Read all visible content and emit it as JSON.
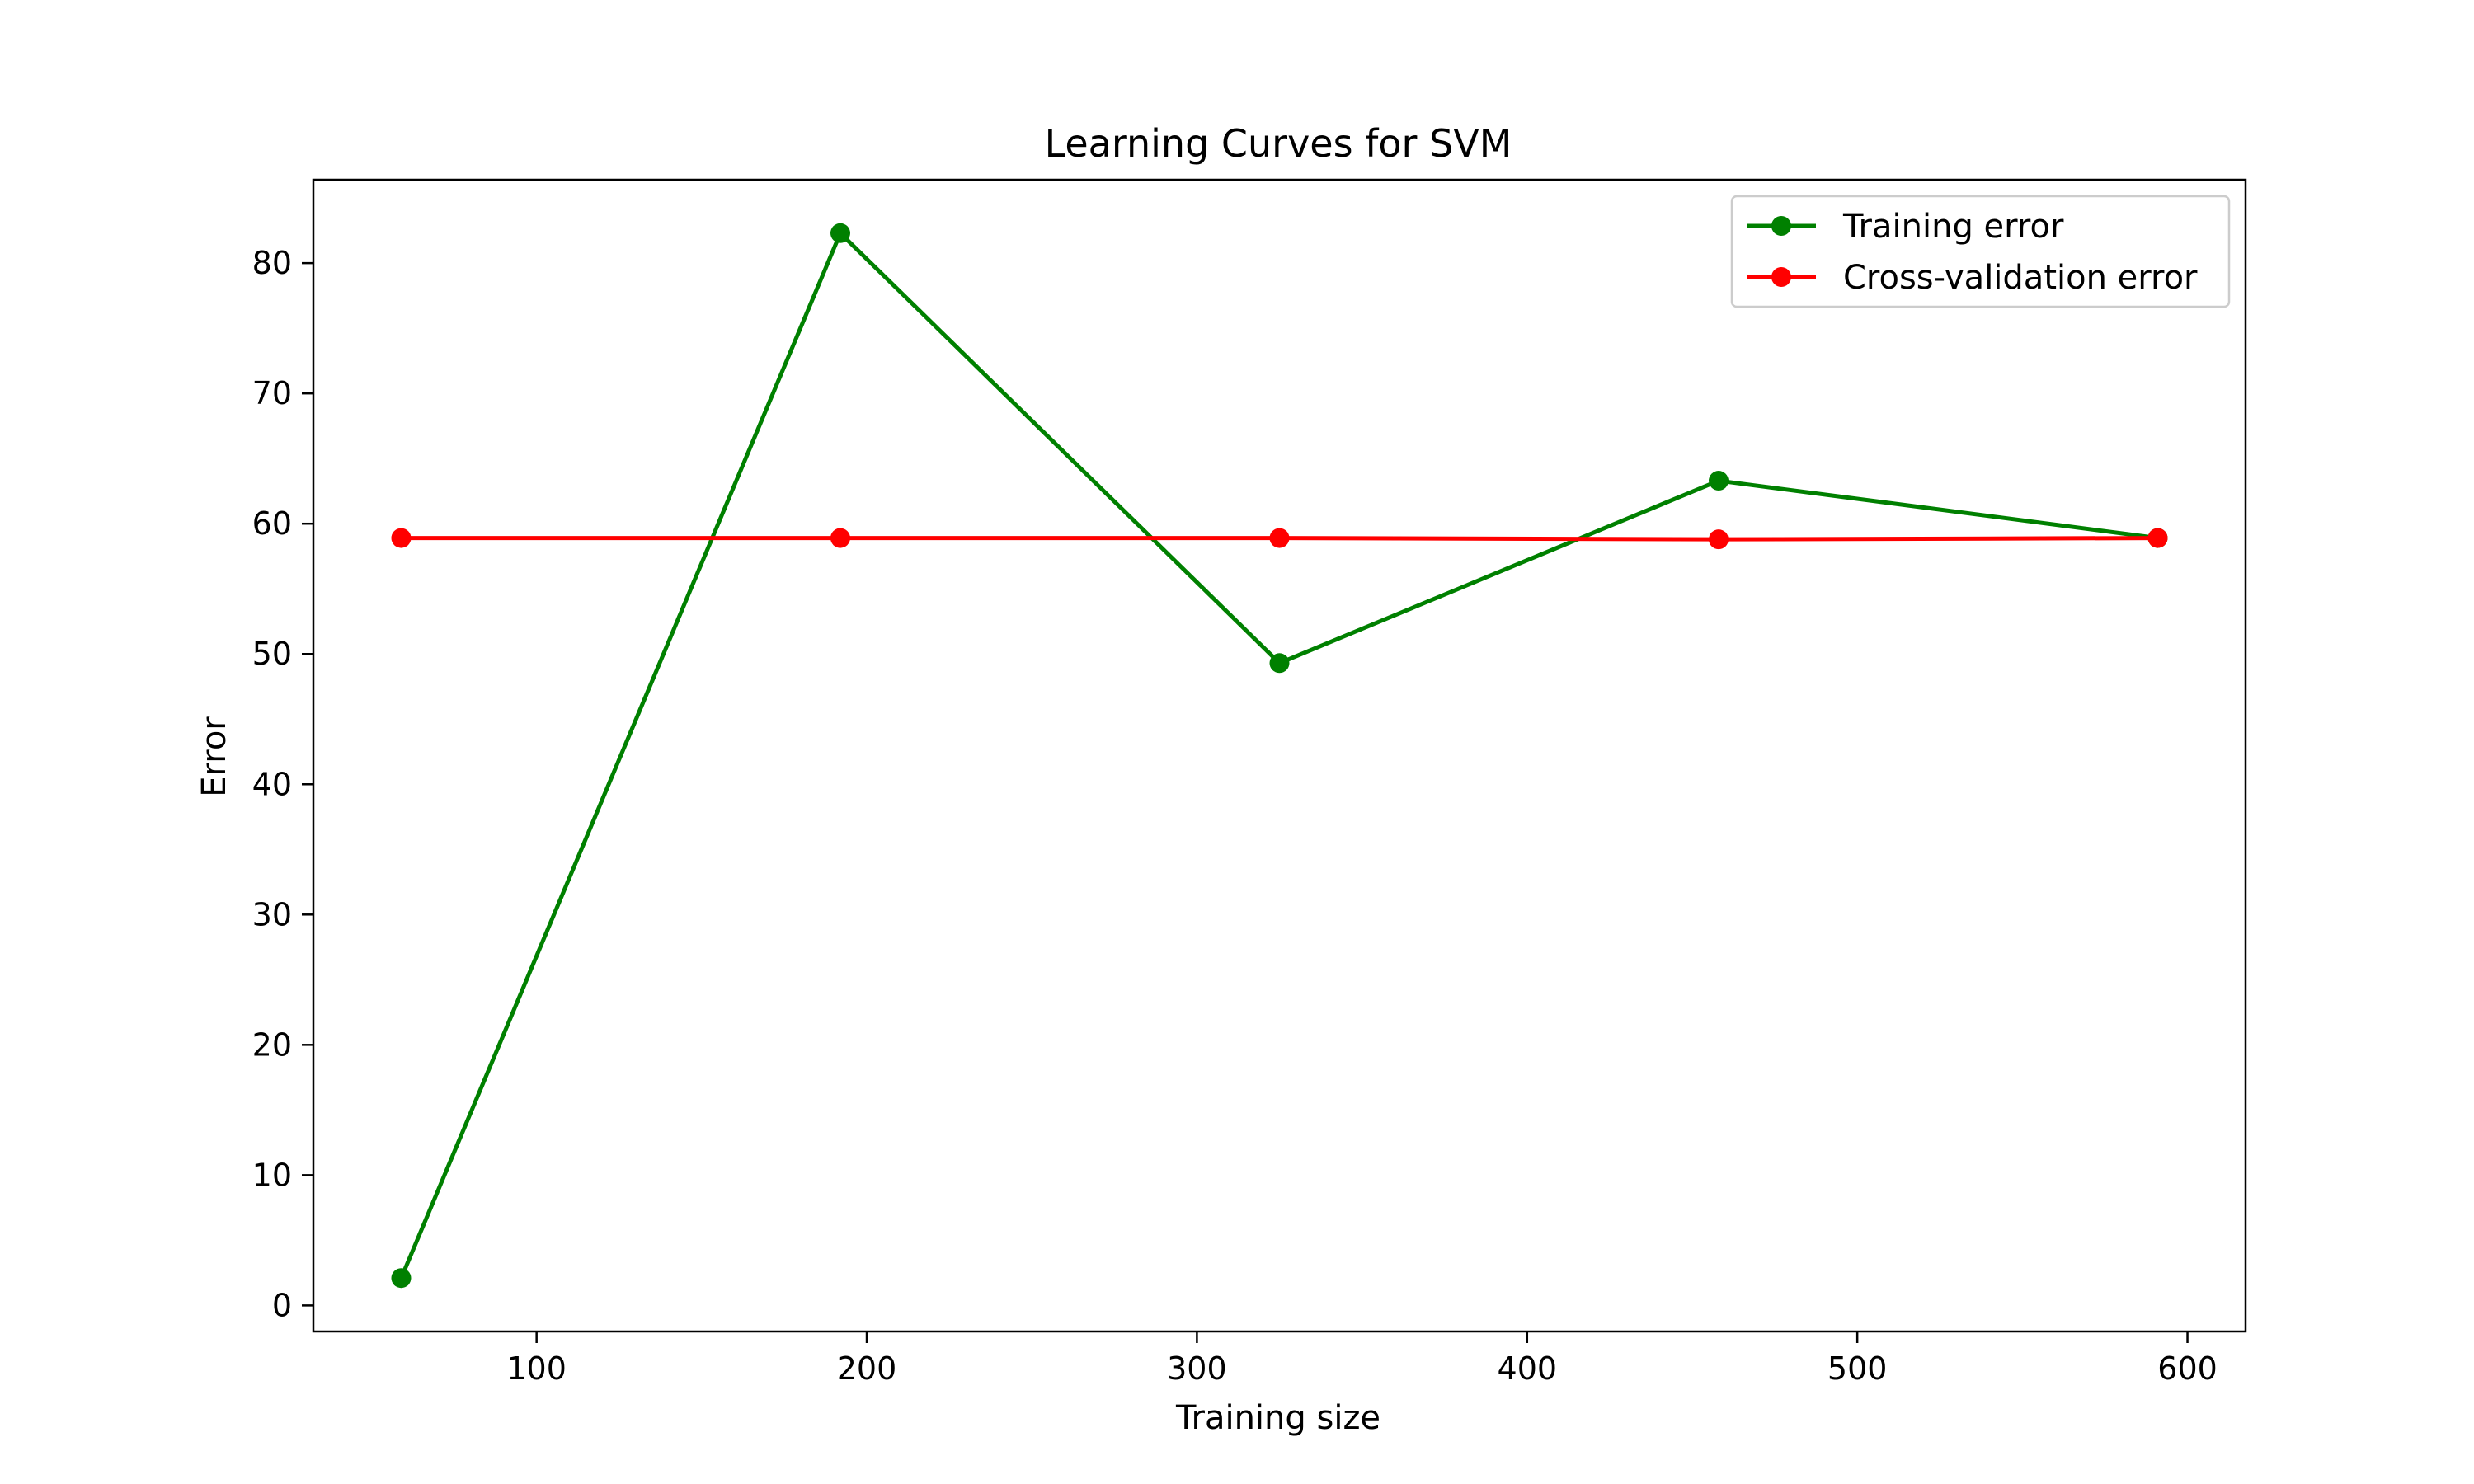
{
  "chart_data": {
    "type": "line",
    "title": "Learning Curves for SVM",
    "xlabel": "Training size",
    "ylabel": "Error",
    "x": [
      59,
      192,
      325,
      458,
      591
    ],
    "series": [
      {
        "name": "Training error",
        "color": "#008000",
        "marker": "circle",
        "values": [
          2.1,
          82.3,
          49.3,
          63.3,
          58.9
        ]
      },
      {
        "name": "Cross-validation error",
        "color": "#ff0000",
        "marker": "circle",
        "values": [
          58.9,
          58.9,
          58.9,
          58.8,
          58.9
        ]
      }
    ],
    "xlim": [
      32.4,
      617.6
    ],
    "ylim": [
      -2.0,
      86.4
    ],
    "xticks": [
      100,
      200,
      300,
      400,
      500,
      600
    ],
    "yticks": [
      0,
      10,
      20,
      30,
      40,
      50,
      60,
      70,
      80
    ],
    "grid": false,
    "legend_position": "top-right"
  }
}
